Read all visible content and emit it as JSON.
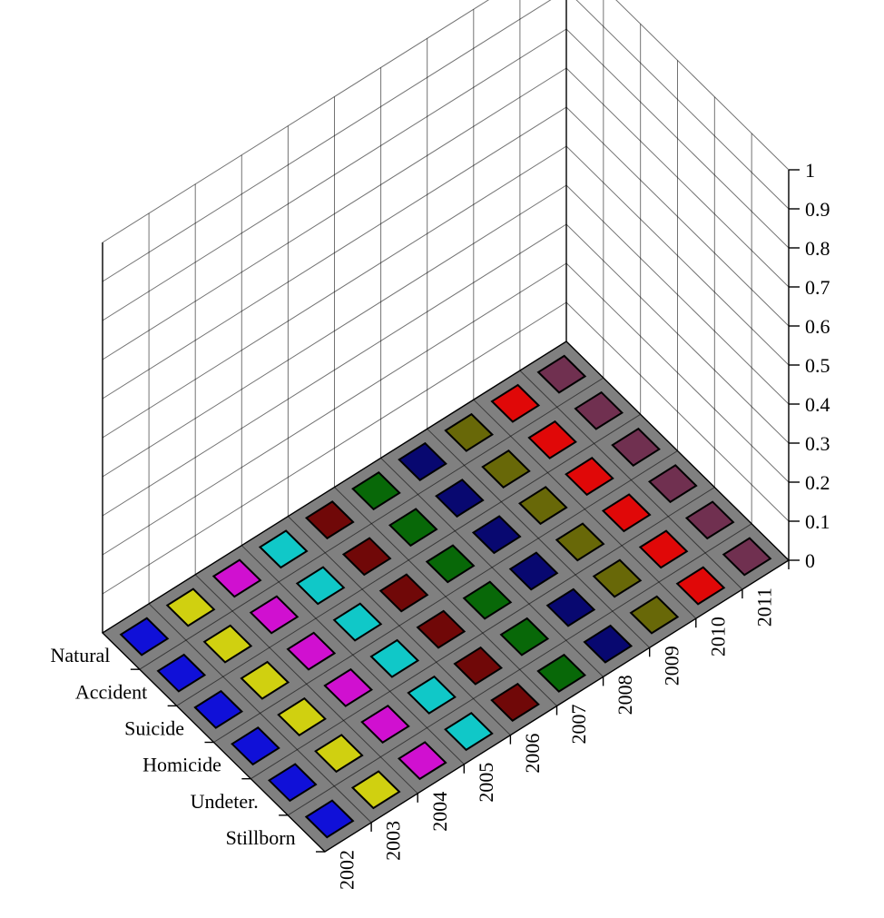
{
  "chart_data": {
    "type": "bar3d",
    "title": "",
    "xlabel": "",
    "ylabel": "",
    "zlabel": "",
    "row_categories": [
      "Natural",
      "Accident",
      "Suicide",
      "Homicide",
      "Undeter.",
      "Stillborn"
    ],
    "col_categories": [
      "2002",
      "2003",
      "2004",
      "2005",
      "2006",
      "2007",
      "2008",
      "2009",
      "2010",
      "2011"
    ],
    "values": [
      [
        0,
        0,
        0,
        0,
        0,
        0,
        0,
        0,
        0,
        0
      ],
      [
        0,
        0,
        0,
        0,
        0,
        0,
        0,
        0,
        0,
        0
      ],
      [
        0,
        0,
        0,
        0,
        0,
        0,
        0,
        0,
        0,
        0
      ],
      [
        0,
        0,
        0,
        0,
        0,
        0,
        0,
        0,
        0,
        0
      ],
      [
        0,
        0,
        0,
        0,
        0,
        0,
        0,
        0,
        0,
        0
      ],
      [
        0,
        0,
        0,
        0,
        0,
        0,
        0,
        0,
        0,
        0
      ]
    ],
    "zlim": [
      0,
      1
    ],
    "z_ticks": [
      "0",
      "0.1",
      "0.2",
      "0.3",
      "0.4",
      "0.5",
      "0.6",
      "0.7",
      "0.8",
      "0.9",
      "1"
    ],
    "grid": true,
    "floor_color": "#808080",
    "col_colors": [
      "#1010d8",
      "#d0d010",
      "#d010d0",
      "#10c8c8",
      "#700808",
      "#086808",
      "#080870",
      "#686808",
      "#e00808",
      "#703050"
    ]
  }
}
